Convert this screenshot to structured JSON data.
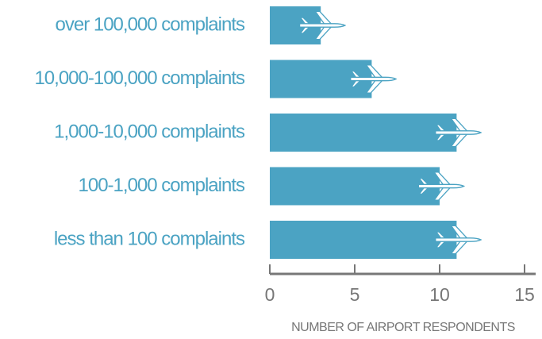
{
  "chart_data": {
    "type": "bar",
    "orientation": "horizontal",
    "categories": [
      "over 100,000 complaints",
      "10,000-100,000 complaints",
      "1,000-10,000 complaints",
      "100-1,000 complaints",
      "less than 100 complaints"
    ],
    "values": [
      3,
      6,
      11,
      10,
      11
    ],
    "color": "#4ba3c3",
    "xlim": [
      0,
      15
    ],
    "xticks": [
      0,
      5,
      10,
      15
    ],
    "x_label": "NUMBER OF AIRPORT RESPONDENTS",
    "grid": false
  }
}
